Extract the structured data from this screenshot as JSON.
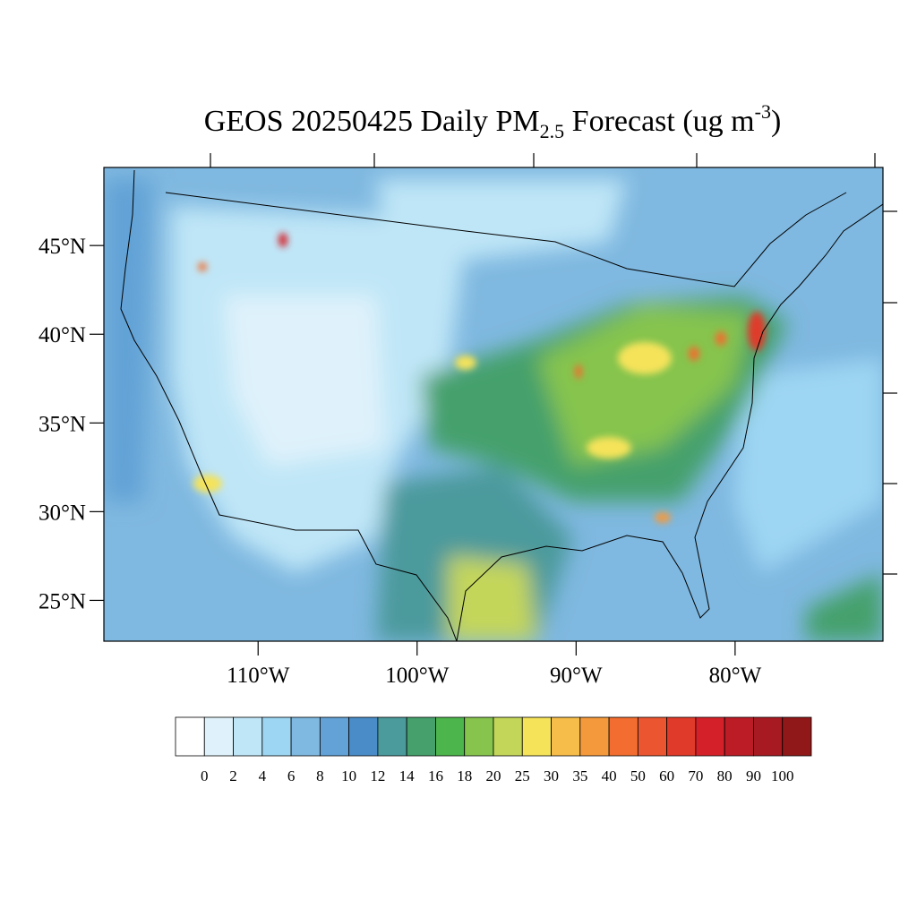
{
  "title": {
    "main": "GEOS 20250425 Daily PM",
    "sub": "2.5",
    "mid": " Forecast (ug m",
    "sup": "-3",
    "end": ")"
  },
  "map": {
    "lonlim": [
      -119.7,
      -70.7
    ],
    "latlim": [
      22.7,
      49.4
    ],
    "lonticks": [
      {
        "value": -110,
        "label": "110°W"
      },
      {
        "value": -100,
        "label": "100°W"
      },
      {
        "value": -90,
        "label": "90°W"
      },
      {
        "value": -80,
        "label": "80°W"
      }
    ],
    "latticks": [
      {
        "value": 45,
        "label": "45°N"
      },
      {
        "value": 40,
        "label": "40°N"
      },
      {
        "value": 35,
        "label": "35°N"
      },
      {
        "value": 30,
        "label": "30°N"
      },
      {
        "value": 25,
        "label": "25°N"
      }
    ]
  },
  "colorbar": {
    "levels": [
      0,
      2,
      4,
      6,
      8,
      10,
      12,
      14,
      16,
      18,
      20,
      25,
      30,
      35,
      40,
      50,
      60,
      70,
      80,
      90,
      100
    ],
    "colors": [
      "#ffffff",
      "#dff2fb",
      "#bfe6f7",
      "#9dd6f3",
      "#7fb8e0",
      "#62a2d6",
      "#4a8cc8",
      "#4b9a9c",
      "#45a06c",
      "#4cb54b",
      "#86c44e",
      "#c4d65a",
      "#f5e35a",
      "#f7bd4a",
      "#f59a3c",
      "#f26d2f",
      "#eb5530",
      "#e03a2a",
      "#d42129",
      "#bc1c26",
      "#a81a22",
      "#901818"
    ]
  }
}
